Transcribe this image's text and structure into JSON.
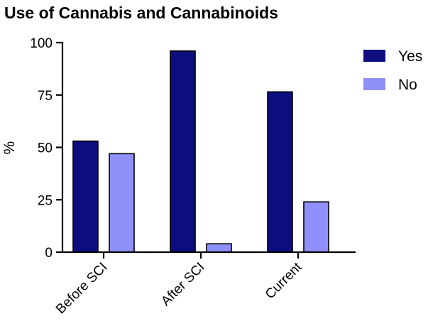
{
  "chart_data": {
    "type": "bar",
    "title": "Use of Cannabis and Cannabinoids",
    "ylabel": "%",
    "xlabel": "",
    "ylim": [
      0,
      100
    ],
    "yticks": [
      0,
      25,
      50,
      75,
      100
    ],
    "categories": [
      "Before SCI",
      "After SCI",
      "Current"
    ],
    "series": [
      {
        "name": "Yes",
        "values": [
          53,
          96,
          76.5
        ],
        "color": "#0d0d80"
      },
      {
        "name": "No",
        "values": [
          47,
          4,
          24
        ],
        "color": "#9090fa"
      }
    ],
    "grid": false,
    "legend_position": "top-right"
  }
}
